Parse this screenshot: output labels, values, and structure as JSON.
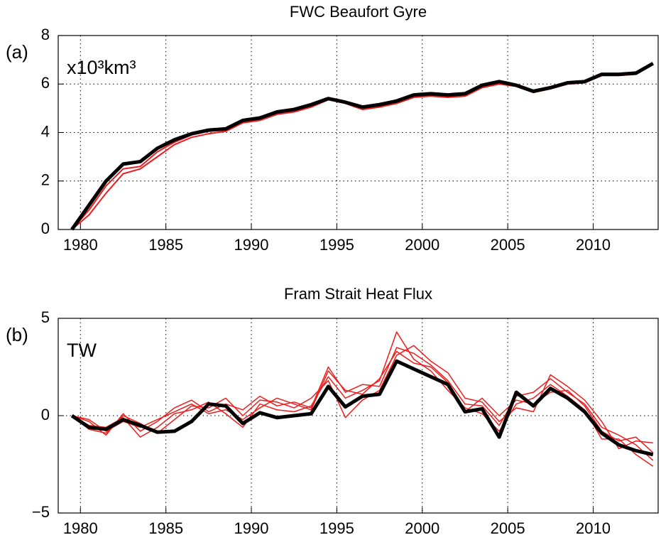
{
  "chart_data": [
    {
      "type": "line",
      "title": "FWC Beaufort Gyre",
      "annotations": [
        "(a)",
        "x10³km³"
      ],
      "x": [
        1979.5,
        1980.5,
        1981.5,
        1982.5,
        1983.5,
        1984.5,
        1985.5,
        1986.5,
        1987.5,
        1988.5,
        1989.5,
        1990.5,
        1991.5,
        1992.5,
        1993.5,
        1994.5,
        1995.5,
        1996.5,
        1997.5,
        1998.5,
        1999.5,
        2000.5,
        2001.5,
        2002.5,
        2003.5,
        2004.5,
        2005.5,
        2006.5,
        2007.5,
        2008.5,
        2009.5,
        2010.5,
        2011.5,
        2012.5,
        2013.5
      ],
      "xlim": [
        1978.7,
        2013.8
      ],
      "xticks": [
        1980,
        1985,
        1990,
        1995,
        2000,
        2005,
        2010
      ],
      "ylim": [
        0,
        8
      ],
      "yticks": [
        0,
        2,
        4,
        6,
        8
      ],
      "grid": true,
      "series": [
        {
          "color": "#ee1c1c",
          "width": 2,
          "values": [
            0,
            0.6,
            1.5,
            2.3,
            2.5,
            3.0,
            3.5,
            3.8,
            3.95,
            4.05,
            4.4,
            4.5,
            4.75,
            4.85,
            5.05,
            5.35,
            5.2,
            4.95,
            5.05,
            5.2,
            5.45,
            5.5,
            5.45,
            5.5,
            5.85,
            6.0,
            5.9,
            5.65,
            5.8,
            6.0,
            6.05,
            6.35,
            6.35,
            6.4,
            6.8
          ]
        },
        {
          "color": "#ee1c1c",
          "width": 2,
          "values": [
            0,
            0.8,
            1.8,
            2.5,
            2.6,
            3.2,
            3.6,
            3.9,
            4.05,
            4.1,
            4.45,
            4.55,
            4.8,
            4.9,
            5.1,
            5.4,
            5.25,
            5.0,
            5.1,
            5.25,
            5.5,
            5.55,
            5.5,
            5.55,
            5.9,
            6.05,
            5.95,
            5.7,
            5.85,
            6.05,
            6.1,
            6.4,
            6.4,
            6.45,
            6.85
          ]
        },
        {
          "color": "#000000",
          "width": 5,
          "values": [
            0,
            1.0,
            2.0,
            2.7,
            2.8,
            3.35,
            3.7,
            3.95,
            4.1,
            4.15,
            4.5,
            4.6,
            4.85,
            4.95,
            5.15,
            5.4,
            5.25,
            5.05,
            5.15,
            5.3,
            5.55,
            5.6,
            5.55,
            5.6,
            5.95,
            6.1,
            5.95,
            5.7,
            5.85,
            6.05,
            6.1,
            6.4,
            6.4,
            6.45,
            6.85
          ]
        }
      ]
    },
    {
      "type": "line",
      "title": "Fram Strait Heat Flux",
      "annotations": [
        "(b)",
        "TW"
      ],
      "x": [
        1979.5,
        1980.5,
        1981.5,
        1982.5,
        1983.5,
        1984.5,
        1985.5,
        1986.5,
        1987.5,
        1988.5,
        1989.5,
        1990.5,
        1991.5,
        1992.5,
        1993.5,
        1994.5,
        1995.5,
        1996.5,
        1997.5,
        1998.5,
        1999.5,
        2000.5,
        2001.5,
        2002.5,
        2003.5,
        2004.5,
        2005.5,
        2006.5,
        2007.5,
        2008.5,
        2009.5,
        2010.5,
        2011.5,
        2012.5,
        2013.5
      ],
      "xlim": [
        1978.7,
        2013.8
      ],
      "xticks": [
        1980,
        1985,
        1990,
        1995,
        2000,
        2005,
        2010
      ],
      "ylim": [
        -5,
        5
      ],
      "yticks": [
        {
          "value": -5,
          "label": "−5"
        },
        0,
        5
      ],
      "grid": true,
      "series": [
        {
          "color": "#ee1c1c",
          "width": 1.5,
          "values": [
            0,
            -0.3,
            -1.0,
            0.1,
            -0.8,
            -0.3,
            0.4,
            0.8,
            0.2,
            0.6,
            0.3,
            1.0,
            0.5,
            0.7,
            0.4,
            2.5,
            1.2,
            1.6,
            1.5,
            3.5,
            3.2,
            2.6,
            1.8,
            0.6,
            0.5,
            -0.5,
            1.0,
            1.2,
            1.9,
            1.2,
            0.6,
            -0.6,
            -1.0,
            -1.5,
            -2.3
          ]
        },
        {
          "color": "#ee1c1c",
          "width": 1.5,
          "values": [
            0,
            -0.5,
            -0.6,
            -0.1,
            -1.1,
            -0.6,
            0.1,
            0.3,
            0.7,
            0.1,
            -0.6,
            0.6,
            0.3,
            0.2,
            0.5,
            2.0,
            0.9,
            1.3,
            1.8,
            4.3,
            2.9,
            2.3,
            1.3,
            0.4,
            0.1,
            -0.8,
            0.6,
            0.9,
            1.6,
            1.0,
            0.3,
            -1.2,
            -1.2,
            -2.0,
            -2.6
          ]
        },
        {
          "color": "#ee1c1c",
          "width": 1.5,
          "values": [
            0,
            -0.7,
            -0.9,
            0.0,
            -0.4,
            -0.9,
            -0.2,
            0.5,
            0.4,
            0.9,
            0.0,
            0.8,
            0.7,
            0.4,
            0.9,
            1.8,
            -0.1,
            0.8,
            1.3,
            3.1,
            3.6,
            2.8,
            2.2,
            0.9,
            0.7,
            -0.3,
            0.4,
            0.2,
            2.1,
            1.5,
            0.8,
            -0.3,
            -1.7,
            -1.3,
            -1.4
          ]
        },
        {
          "color": "#ee1c1c",
          "width": 1.5,
          "values": [
            0,
            -0.2,
            -0.8,
            -0.3,
            -0.6,
            -0.2,
            0.2,
            0.6,
            0.1,
            0.3,
            -0.2,
            0.4,
            0.9,
            0.6,
            0.3,
            2.3,
            1.3,
            1.1,
            1.9,
            3.3,
            2.7,
            2.5,
            1.7,
            0.2,
            0.9,
            0.0,
            0.8,
            0.6,
            1.2,
            1.3,
            0.5,
            -0.8,
            -1.3,
            -1.1,
            -1.9
          ]
        },
        {
          "color": "#000000",
          "width": 5,
          "values": [
            0,
            -0.6,
            -0.7,
            -0.2,
            -0.5,
            -0.85,
            -0.8,
            -0.3,
            0.6,
            0.5,
            -0.4,
            0.15,
            -0.1,
            0,
            0.1,
            1.5,
            0.45,
            1.0,
            1.1,
            2.8,
            2.4,
            2.0,
            1.6,
            0.2,
            0.35,
            -1.1,
            1.2,
            0.5,
            1.4,
            0.9,
            0.2,
            -0.9,
            -1.5,
            -1.8,
            -2.0
          ]
        }
      ]
    }
  ]
}
